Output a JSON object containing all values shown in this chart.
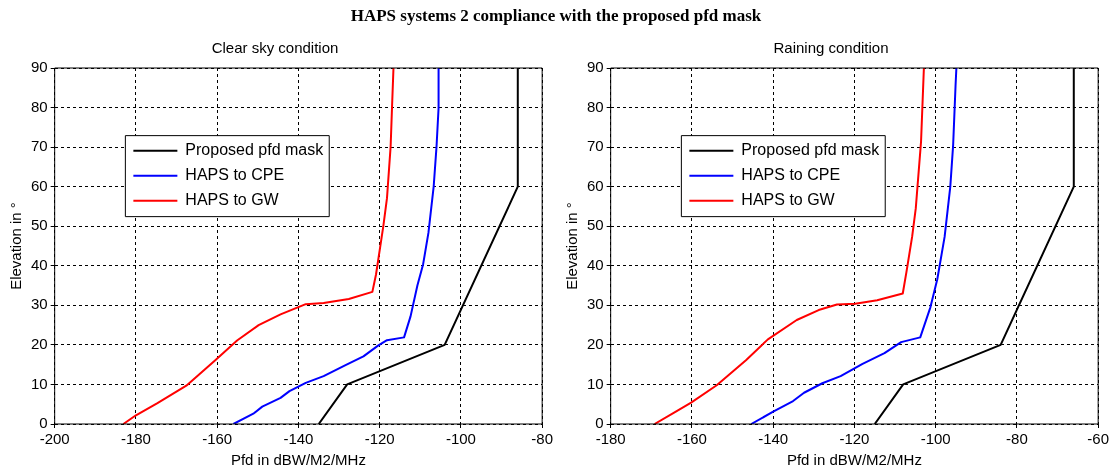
{
  "chart_data": [
    {
      "type": "line",
      "title": "Clear sky condition",
      "xlabel": "Pfd in dBW/M2/MHz",
      "ylabel": "Elevation in °",
      "annotations": [
        "HAPS systems 2 compliance with the proposed pfd mask"
      ],
      "xlim": [
        -200,
        -80
      ],
      "xticks": [
        -200,
        -180,
        -160,
        -140,
        -120,
        -100,
        -80
      ],
      "ylim": [
        0,
        90
      ],
      "yticks": [
        0,
        10,
        20,
        30,
        40,
        50,
        60,
        70,
        80,
        90
      ],
      "grid": true,
      "legend": "top left",
      "line_style": "solid",
      "series": [
        {
          "name": "Proposed pfd mask",
          "color": "#000000",
          "x": [
            -135,
            -128,
            -104,
            -86,
            -86
          ],
          "values": [
            0,
            10,
            20,
            60,
            90
          ]
        },
        {
          "name": "HAPS to CPE",
          "color": "#0000ff",
          "x": [
            -156,
            -151.1,
            -148.9,
            -144.4,
            -142.2,
            -138.2,
            -133.8,
            -128.4,
            -124,
            -120.4,
            -118.2,
            -114,
            -112.4,
            -110.7,
            -109.3,
            -108,
            -106.7,
            -106,
            -105.5,
            -105.5
          ],
          "values": [
            0,
            2.6,
            4.4,
            6.6,
            8.3,
            10.4,
            12.1,
            14.9,
            17.1,
            19.8,
            21.2,
            21.9,
            27.2,
            35.1,
            40.4,
            48.3,
            60.1,
            70.2,
            79.9,
            90
          ]
        },
        {
          "name": "HAPS to GW",
          "color": "#ff0000",
          "x": [
            -183.1,
            -180,
            -174.7,
            -167.6,
            -160.4,
            -155.1,
            -149.8,
            -144.4,
            -138.2,
            -133.8,
            -127.6,
            -121.8,
            -120.9,
            -120,
            -119.1,
            -118.2,
            -117.3,
            -116.9,
            -116.6
          ],
          "values": [
            0,
            2.2,
            5.3,
            9.7,
            16.2,
            21.1,
            25,
            27.7,
            30.3,
            30.6,
            31.6,
            33.4,
            37.8,
            43.9,
            50,
            57.1,
            70.2,
            81.7,
            90
          ]
        }
      ]
    },
    {
      "type": "line",
      "title": "Raining condition",
      "xlabel": "Pfd in dBW/M2/MHz",
      "ylabel": "Elevation in °",
      "xlim": [
        -180,
        -60
      ],
      "xticks": [
        -180,
        -160,
        -140,
        -120,
        -100,
        -80,
        -60
      ],
      "ylim": [
        0,
        90
      ],
      "yticks": [
        0,
        10,
        20,
        30,
        40,
        50,
        60,
        70,
        80,
        90
      ],
      "grid": true,
      "legend": "top left",
      "line_style": "solid",
      "series": [
        {
          "name": "Proposed pfd mask",
          "color": "#000000",
          "x": [
            -115,
            -108,
            -84,
            -66,
            -66
          ],
          "values": [
            0,
            10,
            20,
            60,
            90
          ]
        },
        {
          "name": "HAPS to CPE",
          "color": "#0000ff",
          "x": [
            -145.4,
            -140,
            -135.1,
            -132.4,
            -127.9,
            -123.4,
            -118,
            -112.6,
            -108.5,
            -103.8,
            -101.3,
            -99.6,
            -97.8,
            -96.4,
            -95.7,
            -95.1,
            -94.9
          ],
          "values": [
            0,
            3.1,
            5.8,
            7.9,
            10.3,
            12.1,
            15.2,
            17.9,
            20.7,
            21.9,
            29.5,
            36.6,
            47.3,
            60,
            70.5,
            85.7,
            90
          ]
        },
        {
          "name": "HAPS to GW",
          "color": "#ff0000",
          "x": [
            -169.2,
            -164.7,
            -160.2,
            -153.9,
            -146.7,
            -141.3,
            -134.2,
            -128.8,
            -124.3,
            -119.8,
            -114.4,
            -108.1,
            -107.2,
            -105.8,
            -104.9,
            -103.6,
            -102.9
          ],
          "values": [
            0,
            2.7,
            5.4,
            9.8,
            16.1,
            21.4,
            26.3,
            28.8,
            30.2,
            30.4,
            31.3,
            33,
            38.4,
            47.3,
            54.5,
            71.4,
            90
          ]
        }
      ]
    }
  ]
}
